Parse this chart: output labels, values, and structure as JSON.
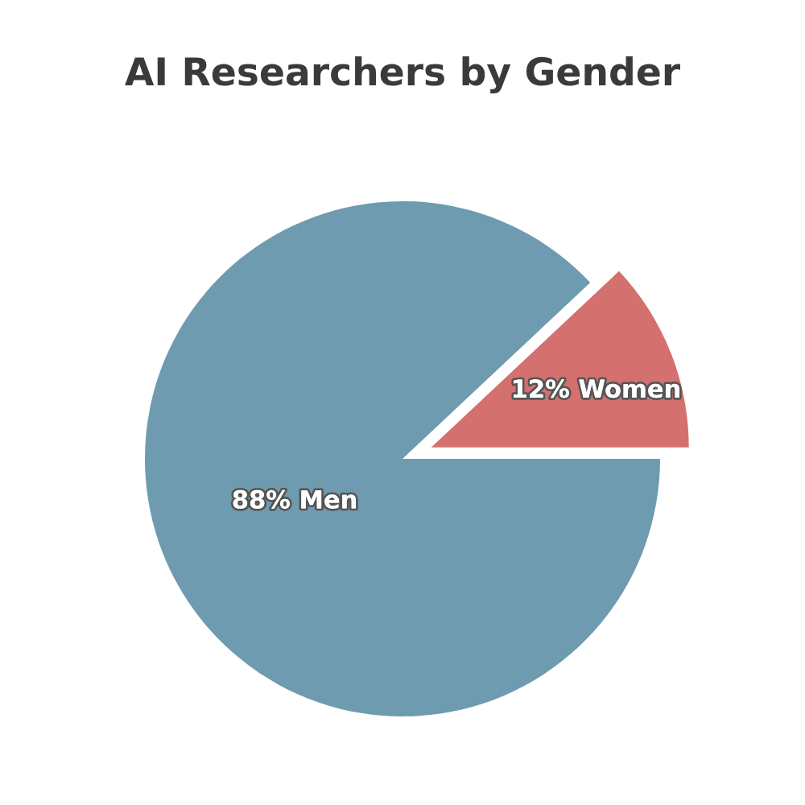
{
  "chart_data": {
    "type": "pie",
    "title": "AI Researchers by Gender",
    "categories": [
      "Women",
      "Men"
    ],
    "values": [
      12,
      88
    ],
    "value_labels": [
      "12%",
      "88%"
    ],
    "colors": [
      "#d4706e",
      "#6f9bb0"
    ],
    "legend": false
  }
}
